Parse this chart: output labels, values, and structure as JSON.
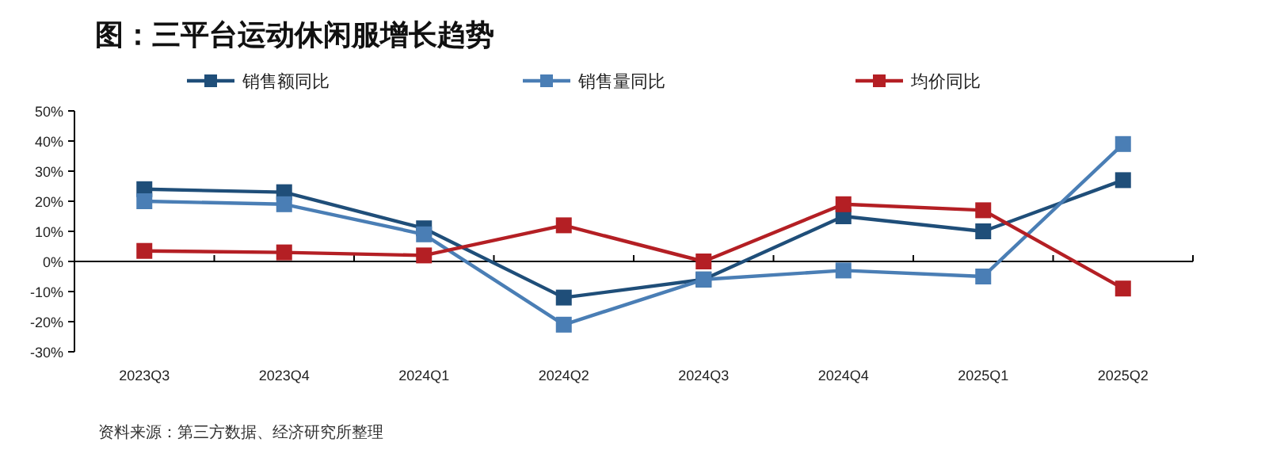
{
  "chart_data": {
    "type": "line",
    "title": "图：三平台运动休闲服增长趋势",
    "categories": [
      "2023Q3",
      "2023Q4",
      "2024Q1",
      "2024Q2",
      "2024Q3",
      "2024Q4",
      "2025Q1",
      "2025Q2"
    ],
    "series": [
      {
        "name": "销售额同比",
        "color": "#1f4e79",
        "values": [
          24,
          23,
          11,
          -12,
          -6,
          15,
          10,
          27
        ]
      },
      {
        "name": "销售量同比",
        "color": "#4a7eb5",
        "values": [
          20,
          19,
          9,
          -21,
          -6,
          -3,
          -5,
          39
        ]
      },
      {
        "name": "均价同比",
        "color": "#b41f24",
        "values": [
          3.5,
          3,
          2,
          12,
          0,
          19,
          17,
          -9
        ]
      }
    ],
    "ylim": [
      -30,
      50
    ],
    "yticks": [
      {
        "value": -30,
        "label": "-30%"
      },
      {
        "value": -20,
        "label": "-20%"
      },
      {
        "value": -10,
        "label": "-10%"
      },
      {
        "value": 0,
        "label": "0%"
      },
      {
        "value": 10,
        "label": "10%"
      },
      {
        "value": 20,
        "label": "20%"
      },
      {
        "value": 30,
        "label": "30%"
      },
      {
        "value": 40,
        "label": "40%"
      },
      {
        "value": 50,
        "label": "50%"
      }
    ],
    "marker": "square",
    "legend": "top",
    "annotations": [
      "资料来源：第三方数据、经济研究所整理"
    ]
  }
}
